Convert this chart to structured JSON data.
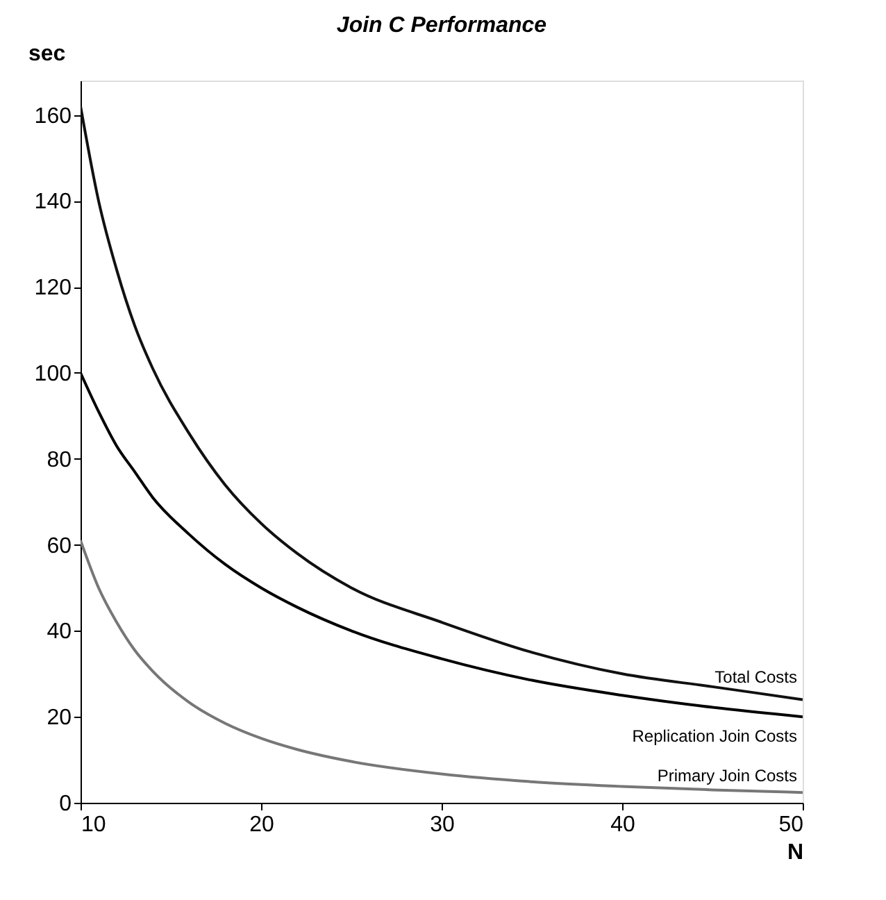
{
  "chart_data": {
    "type": "line",
    "title": "Join C Performance",
    "xlabel": "N",
    "ylabel": "sec",
    "x": [
      10,
      11,
      12,
      13,
      14,
      16,
      18,
      20,
      22,
      25,
      30,
      35,
      40,
      45,
      50
    ],
    "series": [
      {
        "name": "Total Costs",
        "color": "#111111",
        "values": [
          162,
          140,
          124,
          111,
          101,
          86,
          74,
          65,
          58,
          50,
          42,
          35,
          30,
          27,
          24
        ]
      },
      {
        "name": "Replication Join Costs",
        "color": "#000000",
        "values": [
          100,
          91,
          83,
          77,
          71,
          62.5,
          55.5,
          50,
          45.5,
          40,
          33.5,
          28.5,
          25,
          22.2,
          20
        ]
      },
      {
        "name": "Primary Join Costs",
        "color": "#777777",
        "values": [
          61,
          50,
          42,
          35.5,
          30.6,
          23.4,
          18.5,
          15,
          12.4,
          9.6,
          6.7,
          4.9,
          3.8,
          3,
          2.4
        ]
      }
    ],
    "xlim": [
      10,
      50
    ],
    "xticks": [
      10,
      20,
      30,
      40,
      50
    ],
    "ylim": [
      0,
      168
    ],
    "yticks": [
      0,
      20,
      40,
      60,
      80,
      100,
      120,
      140,
      160
    ],
    "grid": false,
    "marker": "none",
    "line_style": "solid"
  }
}
